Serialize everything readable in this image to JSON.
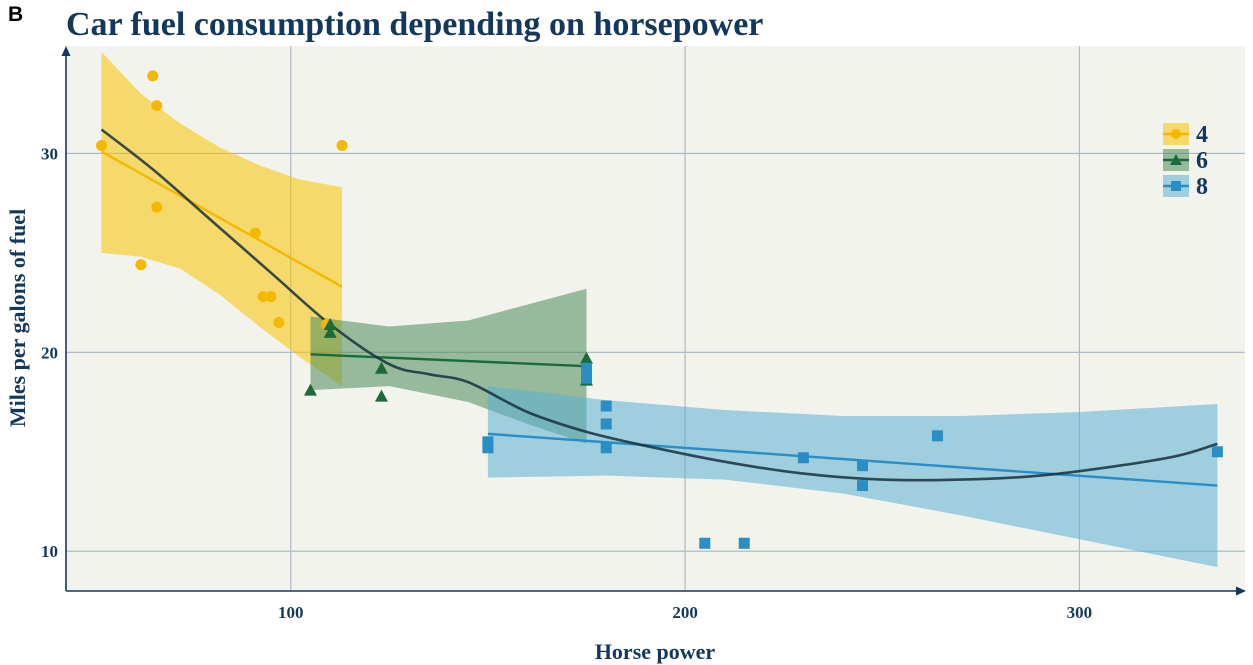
{
  "panel_label": "B",
  "chart_data": {
    "type": "scatter",
    "title": "Car fuel consumption depending on horsepower",
    "xlabel": "Horse power",
    "ylabel": "Miles per galons of fuel",
    "xlim": [
      43,
      342
    ],
    "ylim": [
      8,
      35.4
    ],
    "xticks": [
      100,
      200,
      300
    ],
    "yticks": [
      10,
      20,
      30
    ],
    "grid": true,
    "legend_position": "top-right",
    "colors": {
      "background": "#f3f3ee",
      "grid": "#a8b5c2",
      "axis": "#14385c",
      "overall_trend": "#172f3d"
    },
    "series": [
      {
        "name": "4",
        "marker": "circle",
        "color": "#f5b800",
        "band_color": "#f5c400",
        "points": [
          [
            52,
            30.4
          ],
          [
            62,
            24.4
          ],
          [
            65,
            33.9
          ],
          [
            66,
            32.4
          ],
          [
            66,
            27.3
          ],
          [
            91,
            26.0
          ],
          [
            93,
            22.8
          ],
          [
            95,
            22.8
          ],
          [
            97,
            21.5
          ],
          [
            109,
            21.4
          ],
          [
            113,
            30.4
          ]
        ],
        "fit": [
          [
            52,
            30.1
          ],
          [
            113,
            23.3
          ]
        ],
        "band_upper": [
          [
            52,
            35.1
          ],
          [
            62,
            33.0
          ],
          [
            72,
            31.5
          ],
          [
            82,
            30.3
          ],
          [
            92,
            29.4
          ],
          [
            102,
            28.7
          ],
          [
            113,
            28.3
          ]
        ],
        "band_lower": [
          [
            52,
            25.0
          ],
          [
            62,
            24.8
          ],
          [
            72,
            24.2
          ],
          [
            82,
            22.9
          ],
          [
            92,
            21.3
          ],
          [
            102,
            19.8
          ],
          [
            113,
            18.3
          ]
        ]
      },
      {
        "name": "6",
        "marker": "triangle",
        "color": "#1a6b3a",
        "band_color": "#4a8a5a",
        "points": [
          [
            105,
            18.1
          ],
          [
            110,
            21.0
          ],
          [
            110,
            21.4
          ],
          [
            123,
            19.2
          ],
          [
            123,
            17.8
          ],
          [
            175,
            19.7
          ],
          [
            175,
            18.6
          ]
        ],
        "fit": [
          [
            105,
            19.9
          ],
          [
            175,
            19.3
          ]
        ],
        "band_upper": [
          [
            105,
            21.8
          ],
          [
            125,
            21.3
          ],
          [
            145,
            21.6
          ],
          [
            160,
            22.4
          ],
          [
            175,
            23.2
          ]
        ],
        "band_lower": [
          [
            105,
            18.1
          ],
          [
            125,
            18.3
          ],
          [
            145,
            17.5
          ],
          [
            160,
            16.4
          ],
          [
            175,
            15.4
          ]
        ]
      },
      {
        "name": "8",
        "marker": "square",
        "color": "#2a8dc4",
        "band_color": "#5aaed2",
        "points": [
          [
            150,
            15.5
          ],
          [
            150,
            15.2
          ],
          [
            175,
            19.2
          ],
          [
            175,
            18.7
          ],
          [
            180,
            17.3
          ],
          [
            180,
            16.4
          ],
          [
            180,
            15.2
          ],
          [
            205,
            10.4
          ],
          [
            215,
            10.4
          ],
          [
            230,
            14.7
          ],
          [
            245,
            14.3
          ],
          [
            245,
            13.3
          ],
          [
            264,
            15.8
          ],
          [
            335,
            15.0
          ]
        ],
        "fit": [
          [
            150,
            15.9
          ],
          [
            335,
            13.3
          ]
        ],
        "band_upper": [
          [
            150,
            18.3
          ],
          [
            180,
            17.6
          ],
          [
            210,
            17.1
          ],
          [
            240,
            16.8
          ],
          [
            270,
            16.8
          ],
          [
            300,
            17.0
          ],
          [
            335,
            17.4
          ]
        ],
        "band_lower": [
          [
            150,
            13.7
          ],
          [
            180,
            13.8
          ],
          [
            210,
            13.6
          ],
          [
            240,
            12.9
          ],
          [
            270,
            11.8
          ],
          [
            300,
            10.6
          ],
          [
            335,
            9.2
          ]
        ]
      }
    ],
    "overall_trend": [
      [
        52,
        31.2
      ],
      [
        65,
        29.2
      ],
      [
        80,
        26.6
      ],
      [
        95,
        24.0
      ],
      [
        110,
        21.4
      ],
      [
        125,
        19.4
      ],
      [
        135,
        18.9
      ],
      [
        145,
        18.5
      ],
      [
        160,
        17.0
      ],
      [
        175,
        16.0
      ],
      [
        190,
        15.3
      ],
      [
        210,
        14.5
      ],
      [
        230,
        13.9
      ],
      [
        250,
        13.6
      ],
      [
        270,
        13.6
      ],
      [
        290,
        13.8
      ],
      [
        310,
        14.3
      ],
      [
        325,
        14.8
      ],
      [
        335,
        15.4
      ]
    ]
  }
}
